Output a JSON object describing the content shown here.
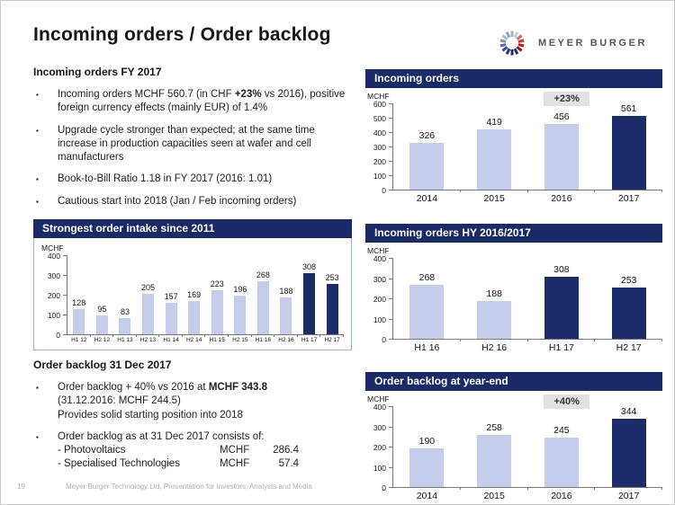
{
  "header": {
    "title": "Incoming orders / Order backlog",
    "logo": {
      "text": "MEYER BURGER",
      "spinner_colors": [
        "#aab3bf",
        "#c7ccd3",
        "#d2696f",
        "#c13a45",
        "#ad1f2d",
        "#8f1622",
        "#27356f",
        "#1b2f6b",
        "#203a78",
        "#33518f",
        "#5570a8",
        "#7f94bd",
        "#a7b5cf",
        "#97a3b2"
      ]
    }
  },
  "palette": {
    "light": "#c5cdeb",
    "dark": "#1b2c68",
    "header_bg": "#1a2a66",
    "badge_bg": "#e2e2e2"
  },
  "left": {
    "section1": {
      "heading": "Incoming orders FY 2017",
      "bullets": [
        [
          {
            "t": "Incoming orders MCHF 560.7 (in CHF ",
            "b": false
          },
          {
            "t": "+23%",
            "b": true
          },
          {
            "t": " vs 2016), positive foreign currency effects (mainly EUR) of 1.4%",
            "b": false
          }
        ],
        [
          {
            "t": "Upgrade cycle stronger than expected; at the same time increase in production capacities seen at wafer and cell manufacturers",
            "b": false
          }
        ],
        [
          {
            "t": "Book-to-Bill Ratio 1.18 in FY 2017 (2016: 1.01)",
            "b": false
          }
        ],
        [
          {
            "t": "Cautious start into 2018 (Jan / Feb incoming orders)",
            "b": false
          }
        ]
      ]
    },
    "section2": {
      "heading": "Order backlog 31 Dec 2017",
      "bullets": [
        [
          {
            "t": "Order backlog + 40% vs 2016 at ",
            "b": false
          },
          {
            "t": "MCHF 343.8",
            "b": true
          },
          {
            "t": "\n(31.12.2016: MCHF 244.5)\nProvides solid starting position into 2018",
            "b": false
          }
        ],
        [
          {
            "t": "Order backlog as at 31 Dec 2017 consists of:",
            "b": false
          }
        ]
      ],
      "backlog_rows": [
        {
          "label": "- Photovoltaics",
          "unit": "MCHF",
          "value": "286.4"
        },
        {
          "label": "- Specialised Technologies",
          "unit": "MCHF",
          "value": "57.4"
        }
      ]
    }
  },
  "footer": {
    "page_number": "19",
    "text": "Meyer Burger Technology Ltd, Presentation for Investors, Analysts and Media"
  },
  "chart_data": [
    {
      "id": "order-intake-halfyear",
      "type": "bar",
      "title": "Strongest order intake since 2011",
      "ylabel": "MCHF",
      "ylim": [
        0,
        400
      ],
      "ytick_step": 100,
      "grid": false,
      "categories": [
        "H1 12",
        "H2 12",
        "H1 13",
        "H2 13",
        "H1 14",
        "H2 14",
        "H1 15",
        "H2 15",
        "H1 16",
        "H2 16",
        "H1 17",
        "H2 17"
      ],
      "values": [
        128,
        95,
        83,
        205,
        157,
        169,
        223,
        196,
        268,
        188,
        308,
        253
      ],
      "colors": [
        "light",
        "light",
        "light",
        "light",
        "light",
        "light",
        "light",
        "light",
        "light",
        "light",
        "dark",
        "dark"
      ]
    },
    {
      "id": "incoming-orders-annual",
      "type": "bar",
      "title": "Incoming orders",
      "ylabel": "MCHF",
      "ylim": [
        0,
        600
      ],
      "ytick_step": 100,
      "grid": false,
      "categories": [
        "2014",
        "2015",
        "2016",
        "2017"
      ],
      "values": [
        326,
        419,
        456,
        561
      ],
      "colors": [
        "light",
        "light",
        "light",
        "dark"
      ],
      "badge": "+23%"
    },
    {
      "id": "incoming-orders-halfyear",
      "type": "bar",
      "title": "Incoming orders HY 2016/2017",
      "ylabel": "MCHF",
      "ylim": [
        0,
        400
      ],
      "ytick_step": 100,
      "grid": false,
      "categories": [
        "H1 16",
        "H2 16",
        "H1 17",
        "H2 17"
      ],
      "values": [
        268,
        188,
        308,
        253
      ],
      "colors": [
        "light",
        "light",
        "dark",
        "dark"
      ]
    },
    {
      "id": "order-backlog-yearend",
      "type": "bar",
      "title": "Order backlog at year-end",
      "ylabel": "MCHF",
      "ylim": [
        0,
        400
      ],
      "ytick_step": 100,
      "grid": false,
      "categories": [
        "2014",
        "2015",
        "2016",
        "2017"
      ],
      "values": [
        190,
        258,
        245,
        344
      ],
      "colors": [
        "light",
        "light",
        "light",
        "dark"
      ],
      "badge": "+40%"
    }
  ]
}
